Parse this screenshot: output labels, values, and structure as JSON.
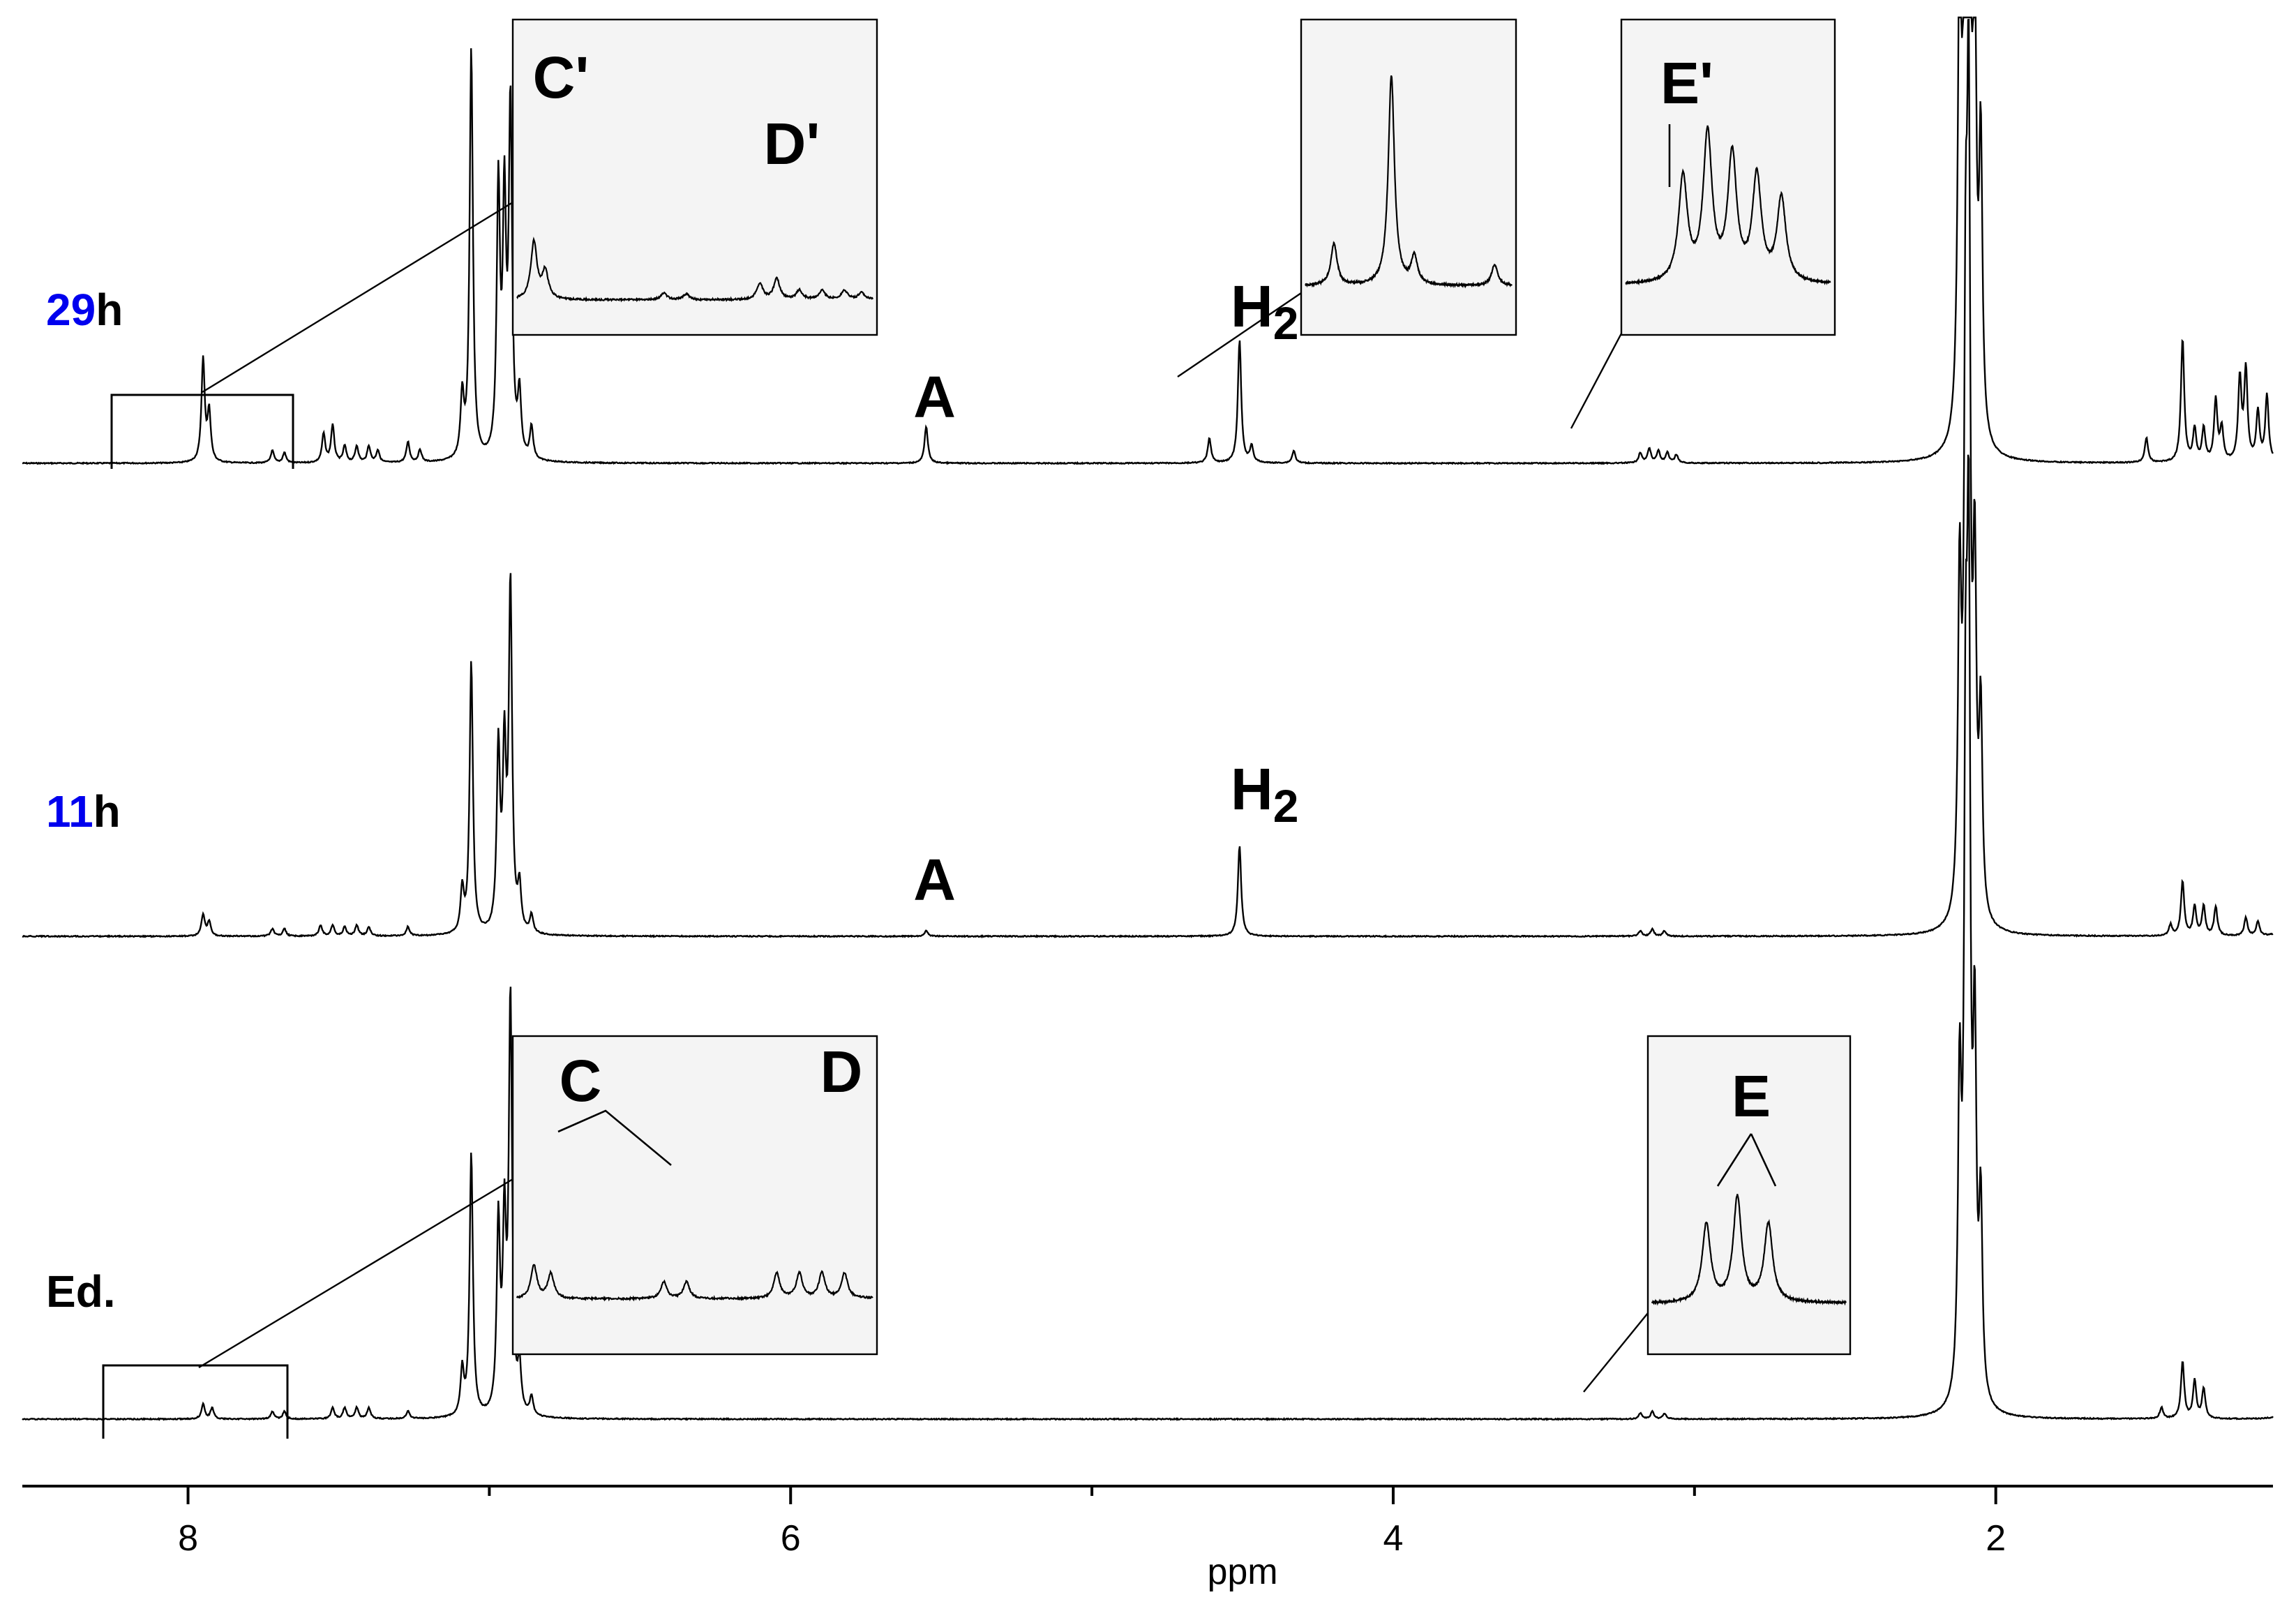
{
  "chart_data": {
    "type": "line",
    "subtype": "1H NMR spectra (stacked)",
    "xlabel": "ppm",
    "xlim": [
      8.55,
      1.08
    ],
    "x_reversed": true,
    "xticks": [
      {
        "value": 8,
        "label": "8"
      },
      {
        "value": 6,
        "label": "6"
      },
      {
        "value": 4,
        "label": "4"
      },
      {
        "value": 2,
        "label": "2"
      }
    ],
    "minor_xticks": [
      7,
      5,
      3
    ],
    "colors": {
      "trace": "#000000",
      "time_number": "#0000ee",
      "inset_fill": "#f4f4f4"
    },
    "series": [
      {
        "name_parts": [
          "29",
          "h"
        ],
        "peaks": [
          [
            7.95,
            0.25
          ],
          [
            7.93,
            0.12
          ],
          [
            7.72,
            0.03
          ],
          [
            7.68,
            0.025
          ],
          [
            7.55,
            0.07
          ],
          [
            7.52,
            0.09
          ],
          [
            7.48,
            0.04
          ],
          [
            7.44,
            0.04
          ],
          [
            7.4,
            0.04
          ],
          [
            7.37,
            0.03
          ],
          [
            7.27,
            0.05
          ],
          [
            7.23,
            0.03
          ],
          [
            7.09,
            0.15
          ],
          [
            7.06,
            1.0
          ],
          [
            6.97,
            0.65
          ],
          [
            6.95,
            0.6
          ],
          [
            6.93,
            0.85
          ],
          [
            6.9,
            0.15
          ],
          [
            6.86,
            0.08
          ],
          [
            5.55,
            0.09
          ],
          [
            4.61,
            0.06
          ],
          [
            4.51,
            0.3
          ],
          [
            4.47,
            0.04
          ],
          [
            4.33,
            0.03
          ],
          [
            3.18,
            0.025
          ],
          [
            3.15,
            0.035
          ],
          [
            3.12,
            0.03
          ],
          [
            3.09,
            0.025
          ],
          [
            3.06,
            0.02
          ],
          [
            2.12,
            1.2
          ],
          [
            2.1,
            1.6
          ],
          [
            2.09,
            2.0
          ],
          [
            2.07,
            1.0
          ],
          [
            2.05,
            0.7
          ],
          [
            1.5,
            0.06
          ],
          [
            1.38,
            0.3
          ],
          [
            1.34,
            0.08
          ],
          [
            1.31,
            0.08
          ],
          [
            1.27,
            0.15
          ],
          [
            1.25,
            0.08
          ],
          [
            1.19,
            0.2
          ],
          [
            1.17,
            0.22
          ],
          [
            1.13,
            0.12
          ],
          [
            1.1,
            0.16
          ],
          [
            1.04,
            0.05
          ],
          [
            1.0,
            0.05
          ],
          [
            0.97,
            0.05
          ],
          [
            0.92,
            0.32
          ],
          [
            0.89,
            0.35
          ],
          [
            0.86,
            0.1
          ]
        ],
        "annotations": [
          {
            "text": "A",
            "x": 5.55
          },
          {
            "text": "H2",
            "x": 4.51
          }
        ]
      },
      {
        "name_parts": [
          "11",
          "h"
        ],
        "peaks": [
          [
            7.95,
            0.06
          ],
          [
            7.93,
            0.04
          ],
          [
            7.72,
            0.02
          ],
          [
            7.68,
            0.02
          ],
          [
            7.56,
            0.03
          ],
          [
            7.52,
            0.03
          ],
          [
            7.48,
            0.025
          ],
          [
            7.44,
            0.03
          ],
          [
            7.4,
            0.025
          ],
          [
            7.27,
            0.025
          ],
          [
            7.09,
            0.12
          ],
          [
            7.06,
            0.75
          ],
          [
            6.97,
            0.5
          ],
          [
            6.95,
            0.48
          ],
          [
            6.93,
            0.95
          ],
          [
            6.9,
            0.12
          ],
          [
            6.86,
            0.05
          ],
          [
            5.55,
            0.015
          ],
          [
            4.51,
            0.25
          ],
          [
            3.18,
            0.015
          ],
          [
            3.14,
            0.02
          ],
          [
            3.1,
            0.015
          ],
          [
            2.12,
            0.9
          ],
          [
            2.1,
            1.4
          ],
          [
            2.09,
            2.0
          ],
          [
            2.07,
            0.9
          ],
          [
            2.05,
            0.55
          ],
          [
            1.42,
            0.03
          ],
          [
            1.38,
            0.15
          ],
          [
            1.34,
            0.08
          ],
          [
            1.31,
            0.08
          ],
          [
            1.27,
            0.08
          ],
          [
            1.17,
            0.05
          ],
          [
            1.13,
            0.04
          ],
          [
            1.05,
            0.08
          ],
          [
            1.01,
            0.1
          ],
          [
            0.97,
            0.1
          ],
          [
            0.93,
            0.12
          ],
          [
            0.9,
            0.12
          ],
          [
            0.86,
            0.08
          ]
        ],
        "annotations": [
          {
            "text": "A",
            "x": 5.55
          },
          {
            "text": "H2",
            "x": 4.51
          }
        ]
      },
      {
        "name_parts": [
          "Ed.",
          ""
        ],
        "peaks": [
          [
            7.95,
            0.04
          ],
          [
            7.92,
            0.03
          ],
          [
            7.72,
            0.02
          ],
          [
            7.68,
            0.02
          ],
          [
            7.52,
            0.03
          ],
          [
            7.48,
            0.03
          ],
          [
            7.44,
            0.03
          ],
          [
            7.4,
            0.03
          ],
          [
            7.27,
            0.02
          ],
          [
            7.09,
            0.12
          ],
          [
            7.06,
            0.7
          ],
          [
            6.97,
            0.5
          ],
          [
            6.95,
            0.48
          ],
          [
            6.93,
            1.1
          ],
          [
            6.9,
            0.12
          ],
          [
            6.86,
            0.05
          ],
          [
            3.18,
            0.015
          ],
          [
            3.14,
            0.02
          ],
          [
            3.1,
            0.015
          ],
          [
            2.12,
            0.8
          ],
          [
            2.1,
            1.5
          ],
          [
            2.09,
            2.0
          ],
          [
            2.07,
            0.9
          ],
          [
            2.05,
            0.5
          ],
          [
            1.45,
            0.03
          ],
          [
            1.38,
            0.15
          ],
          [
            1.34,
            0.1
          ],
          [
            1.31,
            0.08
          ],
          [
            1.05,
            0.1
          ],
          [
            1.01,
            0.1
          ],
          [
            0.97,
            0.1
          ],
          [
            0.93,
            0.1
          ],
          [
            0.9,
            0.1
          ],
          [
            0.86,
            0.04
          ]
        ],
        "annotations": []
      }
    ],
    "insets": [
      {
        "trace": 0,
        "labels": [
          "C'",
          "D'"
        ]
      },
      {
        "trace": 0,
        "labels": []
      },
      {
        "trace": 0,
        "labels": [
          "E'"
        ]
      },
      {
        "trace": 2,
        "labels": [
          "C",
          "D"
        ]
      },
      {
        "trace": 2,
        "labels": [
          "E"
        ]
      }
    ]
  }
}
